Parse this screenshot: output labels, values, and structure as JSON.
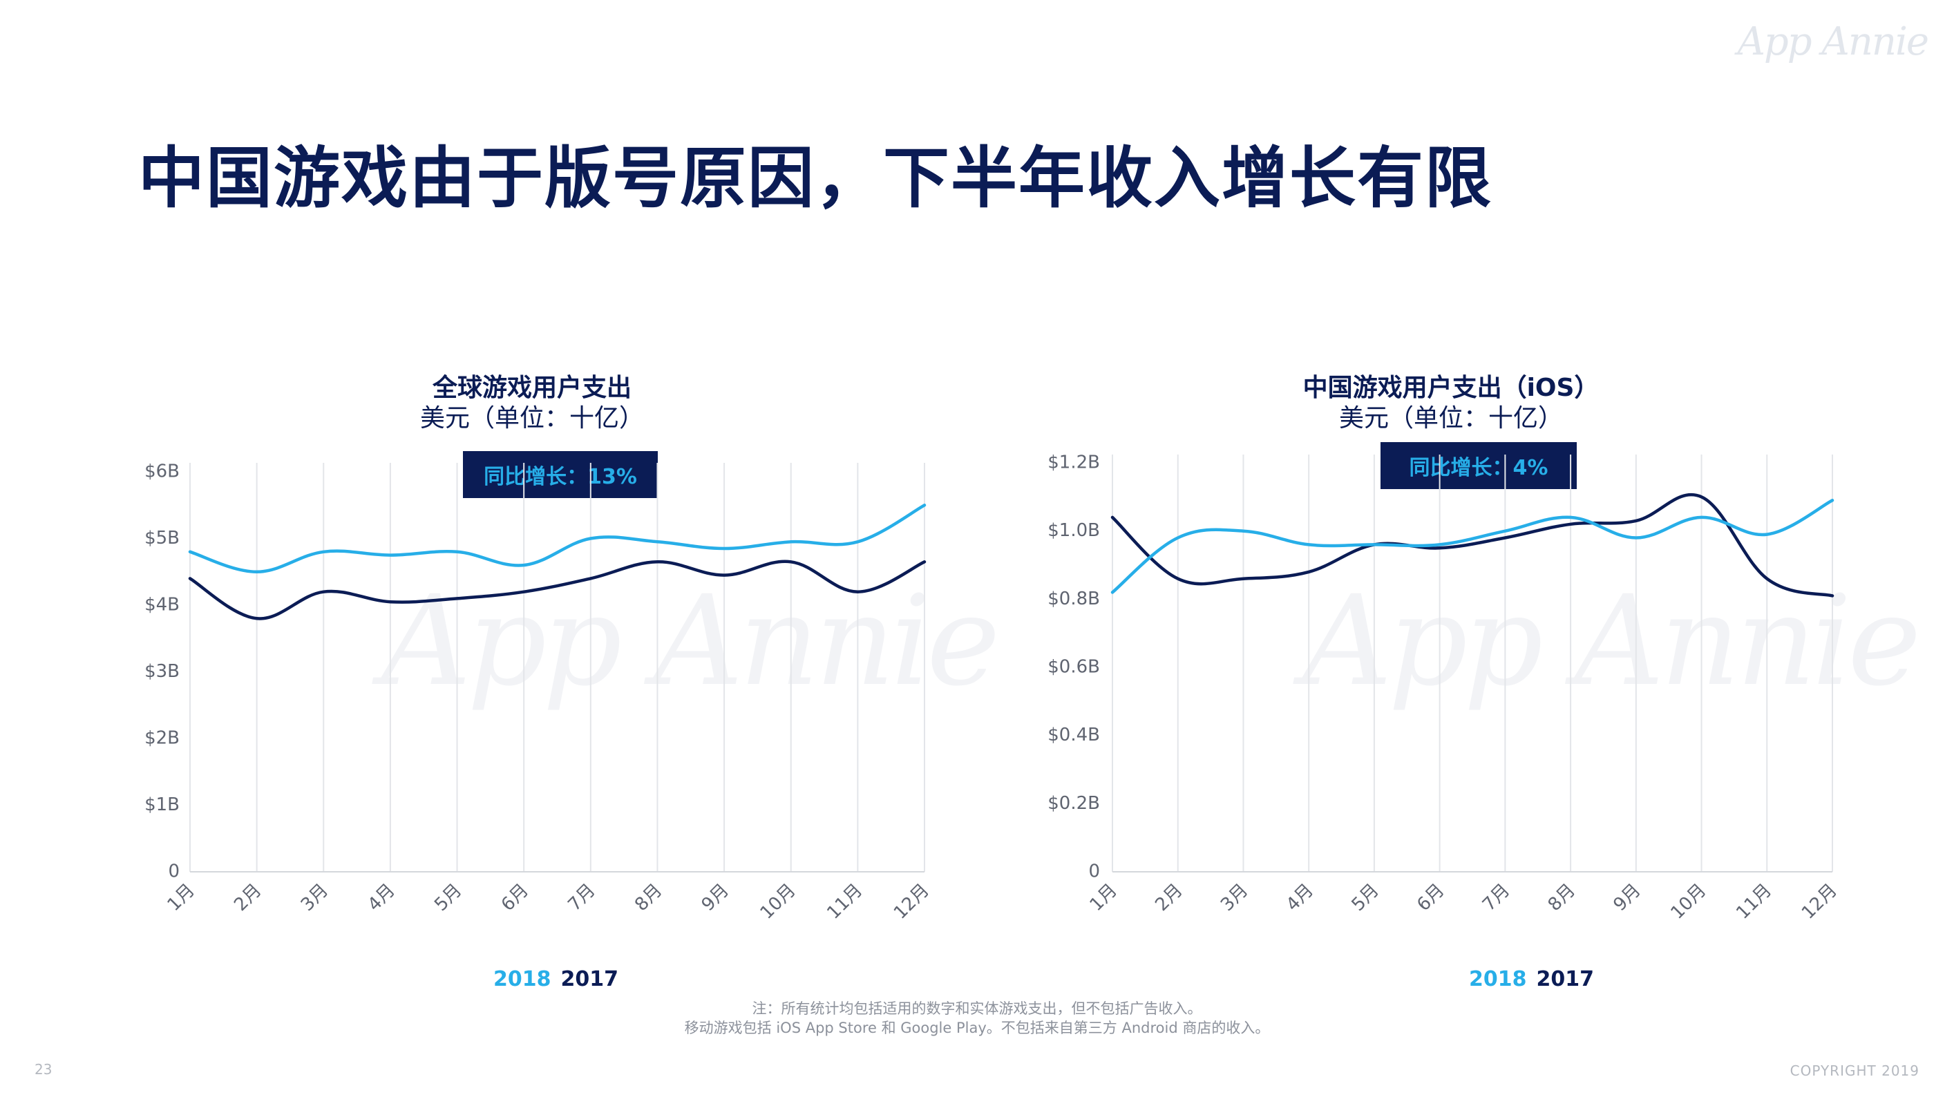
{
  "logo_text": "App Annie",
  "page_title": "中国游戏由于版号原因，下半年收入增长有限",
  "chart_data": [
    {
      "type": "line",
      "title": "全球游戏用户支出",
      "subtitle": "美元（单位：十亿）",
      "growth_label": "同比增长：13%",
      "categories": [
        "1月",
        "2月",
        "3月",
        "4月",
        "5月",
        "6月",
        "7月",
        "8月",
        "9月",
        "10月",
        "11月",
        "12月"
      ],
      "ytick_labels": [
        "0",
        "$1B",
        "$2B",
        "$3B",
        "$4B",
        "$5B",
        "$6B"
      ],
      "ylim": [
        0,
        6
      ],
      "grid": "vertical",
      "series": [
        {
          "name": "2018",
          "color": "#27aee8",
          "values": [
            4.8,
            4.5,
            4.8,
            4.75,
            4.8,
            4.6,
            5.0,
            4.95,
            4.85,
            4.95,
            4.95,
            5.5
          ]
        },
        {
          "name": "2017",
          "color": "#0b1c55",
          "values": [
            4.4,
            3.8,
            4.2,
            4.05,
            4.1,
            4.2,
            4.4,
            4.65,
            4.45,
            4.65,
            4.2,
            4.65
          ]
        }
      ],
      "legend_position": "bottom"
    },
    {
      "type": "line",
      "title": "中国游戏用户支出（iOS）",
      "subtitle": "美元（单位：十亿）",
      "growth_label": "同比增长：4%",
      "categories": [
        "1月",
        "2月",
        "3月",
        "4月",
        "5月",
        "6月",
        "7月",
        "8月",
        "9月",
        "10月",
        "11月",
        "12月"
      ],
      "ytick_labels": [
        "0",
        "$0.2B",
        "$0.4B",
        "$0.6B",
        "$0.8B",
        "$1.0B",
        "$1.2B"
      ],
      "ylim": [
        0,
        1.2
      ],
      "grid": "vertical",
      "series": [
        {
          "name": "2018",
          "color": "#27aee8",
          "values": [
            0.82,
            0.98,
            1.0,
            0.96,
            0.96,
            0.96,
            1.0,
            1.04,
            0.98,
            1.04,
            0.99,
            1.09
          ]
        },
        {
          "name": "2017",
          "color": "#0b1c55",
          "values": [
            1.04,
            0.86,
            0.86,
            0.88,
            0.96,
            0.95,
            0.98,
            1.02,
            1.03,
            1.1,
            0.86,
            0.81
          ]
        }
      ],
      "legend_position": "bottom"
    }
  ],
  "legend": {
    "y2018": "2018",
    "y2017": "2017"
  },
  "footnote": {
    "line1": "注：所有统计均包括适用的数字和实体游戏支出，但不包括广告收入。",
    "line2": "移动游戏包括 iOS App Store 和 Google Play。不包括来自第三方 Android 商店的收入。"
  },
  "page_number": "23",
  "copyright": "COPYRIGHT 2019"
}
